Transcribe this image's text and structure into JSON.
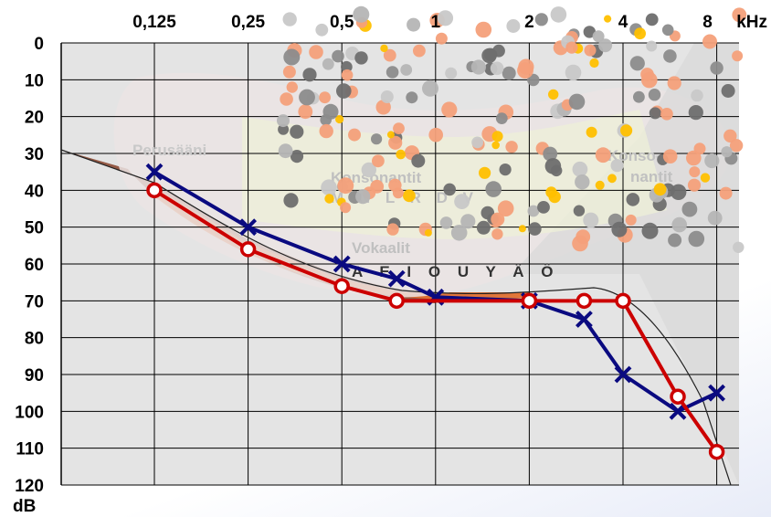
{
  "chart_data": {
    "type": "line",
    "x_ticks": [
      "0,125",
      "0,25",
      "0,5",
      "1",
      "2",
      "4",
      "8"
    ],
    "x_unit": "kHz",
    "x_scale": "log",
    "y_ticks": [
      "0",
      "10",
      "20",
      "30",
      "40",
      "50",
      "60",
      "70",
      "80",
      "90",
      "100",
      "110",
      "120"
    ],
    "y_unit": "dB",
    "ylim": [
      0,
      120
    ],
    "y_inverted": true,
    "grid": true,
    "series": [
      {
        "marker": "x",
        "color": "#0a0a80",
        "x": [
          0.125,
          0.25,
          0.5,
          0.75,
          1,
          2,
          3,
          4,
          6,
          8
        ],
        "y": [
          35,
          50,
          60,
          64,
          69,
          70,
          75,
          90,
          100,
          95
        ]
      },
      {
        "marker": "o",
        "color": "#cc0000",
        "x": [
          0.125,
          0.25,
          0.5,
          0.75,
          2,
          3,
          4,
          6,
          8
        ],
        "y": [
          40,
          56,
          66,
          70,
          70,
          70,
          70,
          96,
          111
        ]
      }
    ],
    "annotations": {
      "fundamental": "Perusääni",
      "consonants_left": "Konsonantit",
      "consonant_letters": "M N L R D V",
      "vowels": "Vokaalit",
      "vowel_letters": "A E I O U Y Ä Ö",
      "consonants_right_1": "Konso-",
      "consonants_right_2": "nantit"
    }
  }
}
